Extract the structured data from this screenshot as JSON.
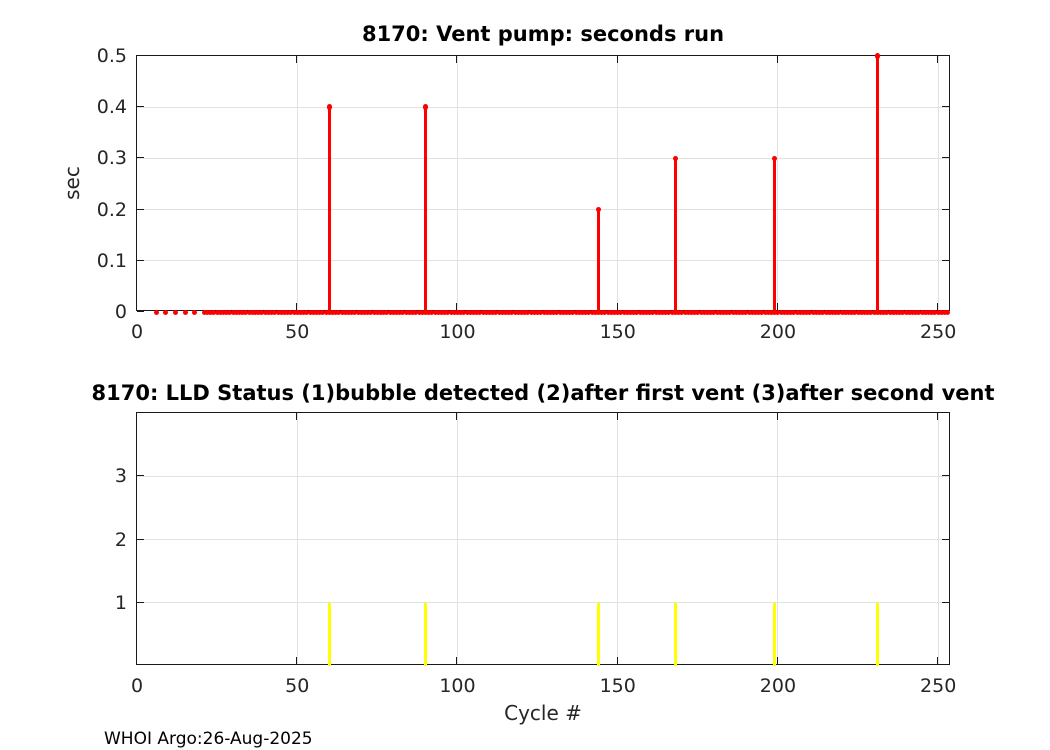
{
  "footer": "WHOI Argo:26-Aug-2025",
  "colors": {
    "stem_red": "#ff0000",
    "stem_yellow": "#ffff00",
    "grid": "#e2e2e2",
    "axis": "#1a1a1a",
    "tick_label": "#262626",
    "title": "#000000"
  },
  "chart_data": [
    {
      "type": "stem",
      "title": "8170: Vent pump: seconds run",
      "xlabel": "",
      "ylabel": "sec",
      "xlim": [
        0,
        254
      ],
      "ylim": [
        0,
        0.5
      ],
      "xticks": [
        0,
        50,
        100,
        150,
        200,
        250
      ],
      "yticks": [
        0,
        0.1,
        0.2,
        0.3,
        0.4,
        0.5
      ],
      "ytick_labels": [
        "0",
        "0.1",
        "0.2",
        "0.3",
        "0.4",
        "0.5"
      ],
      "grid": true,
      "legend": "none",
      "stem_color": "#ff0000",
      "marker": true,
      "stems": [
        {
          "x": 60,
          "y": 0.4
        },
        {
          "x": 90,
          "y": 0.4
        },
        {
          "x": 144,
          "y": 0.2
        },
        {
          "x": 168,
          "y": 0.3
        },
        {
          "x": 199,
          "y": 0.3
        },
        {
          "x": 231,
          "y": 0.5
        }
      ],
      "zero_value_cycles": {
        "sparse": [
          6,
          9,
          12,
          15,
          18
        ],
        "dense_from": 21,
        "dense_to": 253
      }
    },
    {
      "type": "stem",
      "title": "8170: LLD Status   (1)bubble detected   (2)after first vent  (3)after second vent",
      "xlabel": "Cycle #",
      "ylabel": "",
      "xlim": [
        0,
        254
      ],
      "ylim": [
        0,
        4
      ],
      "xticks": [
        0,
        50,
        100,
        150,
        200,
        250
      ],
      "yticks": [
        1,
        2,
        3
      ],
      "ytick_labels": [
        "1",
        "2",
        "3"
      ],
      "grid": true,
      "legend": "none",
      "stem_color": "#ffff00",
      "marker": false,
      "stems": [
        {
          "x": 60,
          "y": 1
        },
        {
          "x": 90,
          "y": 1
        },
        {
          "x": 144,
          "y": 1
        },
        {
          "x": 168,
          "y": 1
        },
        {
          "x": 199,
          "y": 1
        },
        {
          "x": 231,
          "y": 1
        }
      ]
    }
  ]
}
